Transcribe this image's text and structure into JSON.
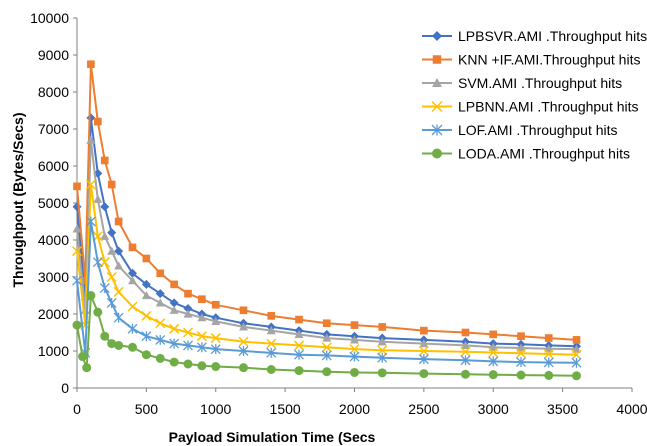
{
  "chart_data": {
    "type": "line",
    "title": "",
    "xlabel": "Payload Simulation Time (Secs",
    "ylabel": "Throughpout (Bytes/Secs)",
    "xlim": [
      0,
      4000
    ],
    "ylim": [
      0,
      10000
    ],
    "x_ticks": [
      0,
      500,
      1000,
      1500,
      2000,
      2500,
      3000,
      3500,
      4000
    ],
    "y_ticks": [
      0,
      1000,
      2000,
      3000,
      4000,
      5000,
      6000,
      7000,
      8000,
      9000,
      10000
    ],
    "grid": false,
    "legend_position": "top-right",
    "series": [
      {
        "name": "LPBSVR.AMI .Throughput hits",
        "color": "#4472C4",
        "marker": "diamond",
        "x": [
          0,
          60,
          100,
          150,
          200,
          250,
          300,
          400,
          500,
          600,
          700,
          800,
          900,
          1000,
          1200,
          1400,
          1600,
          1800,
          2000,
          2200,
          2500,
          2800,
          3000,
          3200,
          3400,
          3600
        ],
        "y": [
          4900,
          2400,
          7300,
          5800,
          4900,
          4200,
          3700,
          3100,
          2800,
          2550,
          2300,
          2150,
          2000,
          1900,
          1750,
          1650,
          1550,
          1450,
          1400,
          1350,
          1300,
          1250,
          1200,
          1180,
          1150,
          1130
        ]
      },
      {
        "name": "KNN +IF.AMI.Throughput hits",
        "color": "#ED7D31",
        "marker": "square",
        "x": [
          0,
          60,
          100,
          150,
          200,
          250,
          300,
          400,
          500,
          600,
          700,
          800,
          900,
          1000,
          1200,
          1400,
          1600,
          1800,
          2000,
          2200,
          2500,
          2800,
          3000,
          3200,
          3400,
          3600
        ],
        "y": [
          5450,
          2900,
          8750,
          7200,
          6150,
          5500,
          4500,
          3800,
          3500,
          3100,
          2800,
          2550,
          2400,
          2250,
          2100,
          1950,
          1850,
          1750,
          1700,
          1650,
          1550,
          1500,
          1450,
          1400,
          1350,
          1300
        ]
      },
      {
        "name": "SVM.AMI .Throughput hits",
        "color": "#A5A5A5",
        "marker": "triangle",
        "x": [
          0,
          60,
          100,
          150,
          200,
          250,
          300,
          400,
          500,
          600,
          700,
          800,
          900,
          1000,
          1200,
          1400,
          1600,
          1800,
          2000,
          2200,
          2500,
          2800,
          3000,
          3200,
          3400,
          3600
        ],
        "y": [
          4300,
          2100,
          6700,
          5100,
          4100,
          3700,
          3300,
          2900,
          2500,
          2300,
          2100,
          2000,
          1900,
          1800,
          1650,
          1550,
          1450,
          1350,
          1300,
          1250,
          1200,
          1150,
          1100,
          1080,
          1060,
          1050
        ]
      },
      {
        "name": "LPBNN.AMI .Throughput hits",
        "color": "#FFC000",
        "marker": "x",
        "x": [
          0,
          60,
          100,
          150,
          200,
          250,
          300,
          400,
          500,
          600,
          700,
          800,
          900,
          1000,
          1200,
          1400,
          1600,
          1800,
          2000,
          2200,
          2500,
          2800,
          3000,
          3200,
          3400,
          3600
        ],
        "y": [
          3700,
          1700,
          5500,
          4100,
          3400,
          3000,
          2600,
          2200,
          1950,
          1750,
          1600,
          1500,
          1400,
          1350,
          1250,
          1200,
          1150,
          1100,
          1050,
          1020,
          1000,
          980,
          960,
          940,
          920,
          900
        ]
      },
      {
        "name": "LOF.AMI .Throughput hits",
        "color": "#5B9BD5",
        "marker": "star",
        "x": [
          0,
          60,
          100,
          150,
          200,
          250,
          300,
          400,
          500,
          600,
          700,
          800,
          900,
          1000,
          1200,
          1400,
          1600,
          1800,
          2000,
          2200,
          2500,
          2800,
          3000,
          3200,
          3400,
          3600
        ],
        "y": [
          2900,
          950,
          4500,
          3400,
          2700,
          2300,
          1900,
          1600,
          1400,
          1300,
          1200,
          1150,
          1100,
          1050,
          1000,
          950,
          900,
          880,
          850,
          820,
          780,
          750,
          720,
          700,
          690,
          680
        ]
      },
      {
        "name": "LODA.AMI .Throughput hits",
        "color": "#70AD47",
        "marker": "circle",
        "x": [
          0,
          40,
          70,
          100,
          150,
          200,
          250,
          300,
          400,
          500,
          600,
          700,
          800,
          900,
          1000,
          1200,
          1400,
          1600,
          1800,
          2000,
          2200,
          2500,
          2800,
          3000,
          3200,
          3400,
          3600
        ],
        "y": [
          1700,
          850,
          550,
          2500,
          2050,
          1400,
          1200,
          1150,
          1100,
          900,
          800,
          700,
          650,
          600,
          580,
          550,
          500,
          470,
          440,
          420,
          410,
          390,
          370,
          360,
          350,
          340,
          330
        ]
      }
    ]
  }
}
